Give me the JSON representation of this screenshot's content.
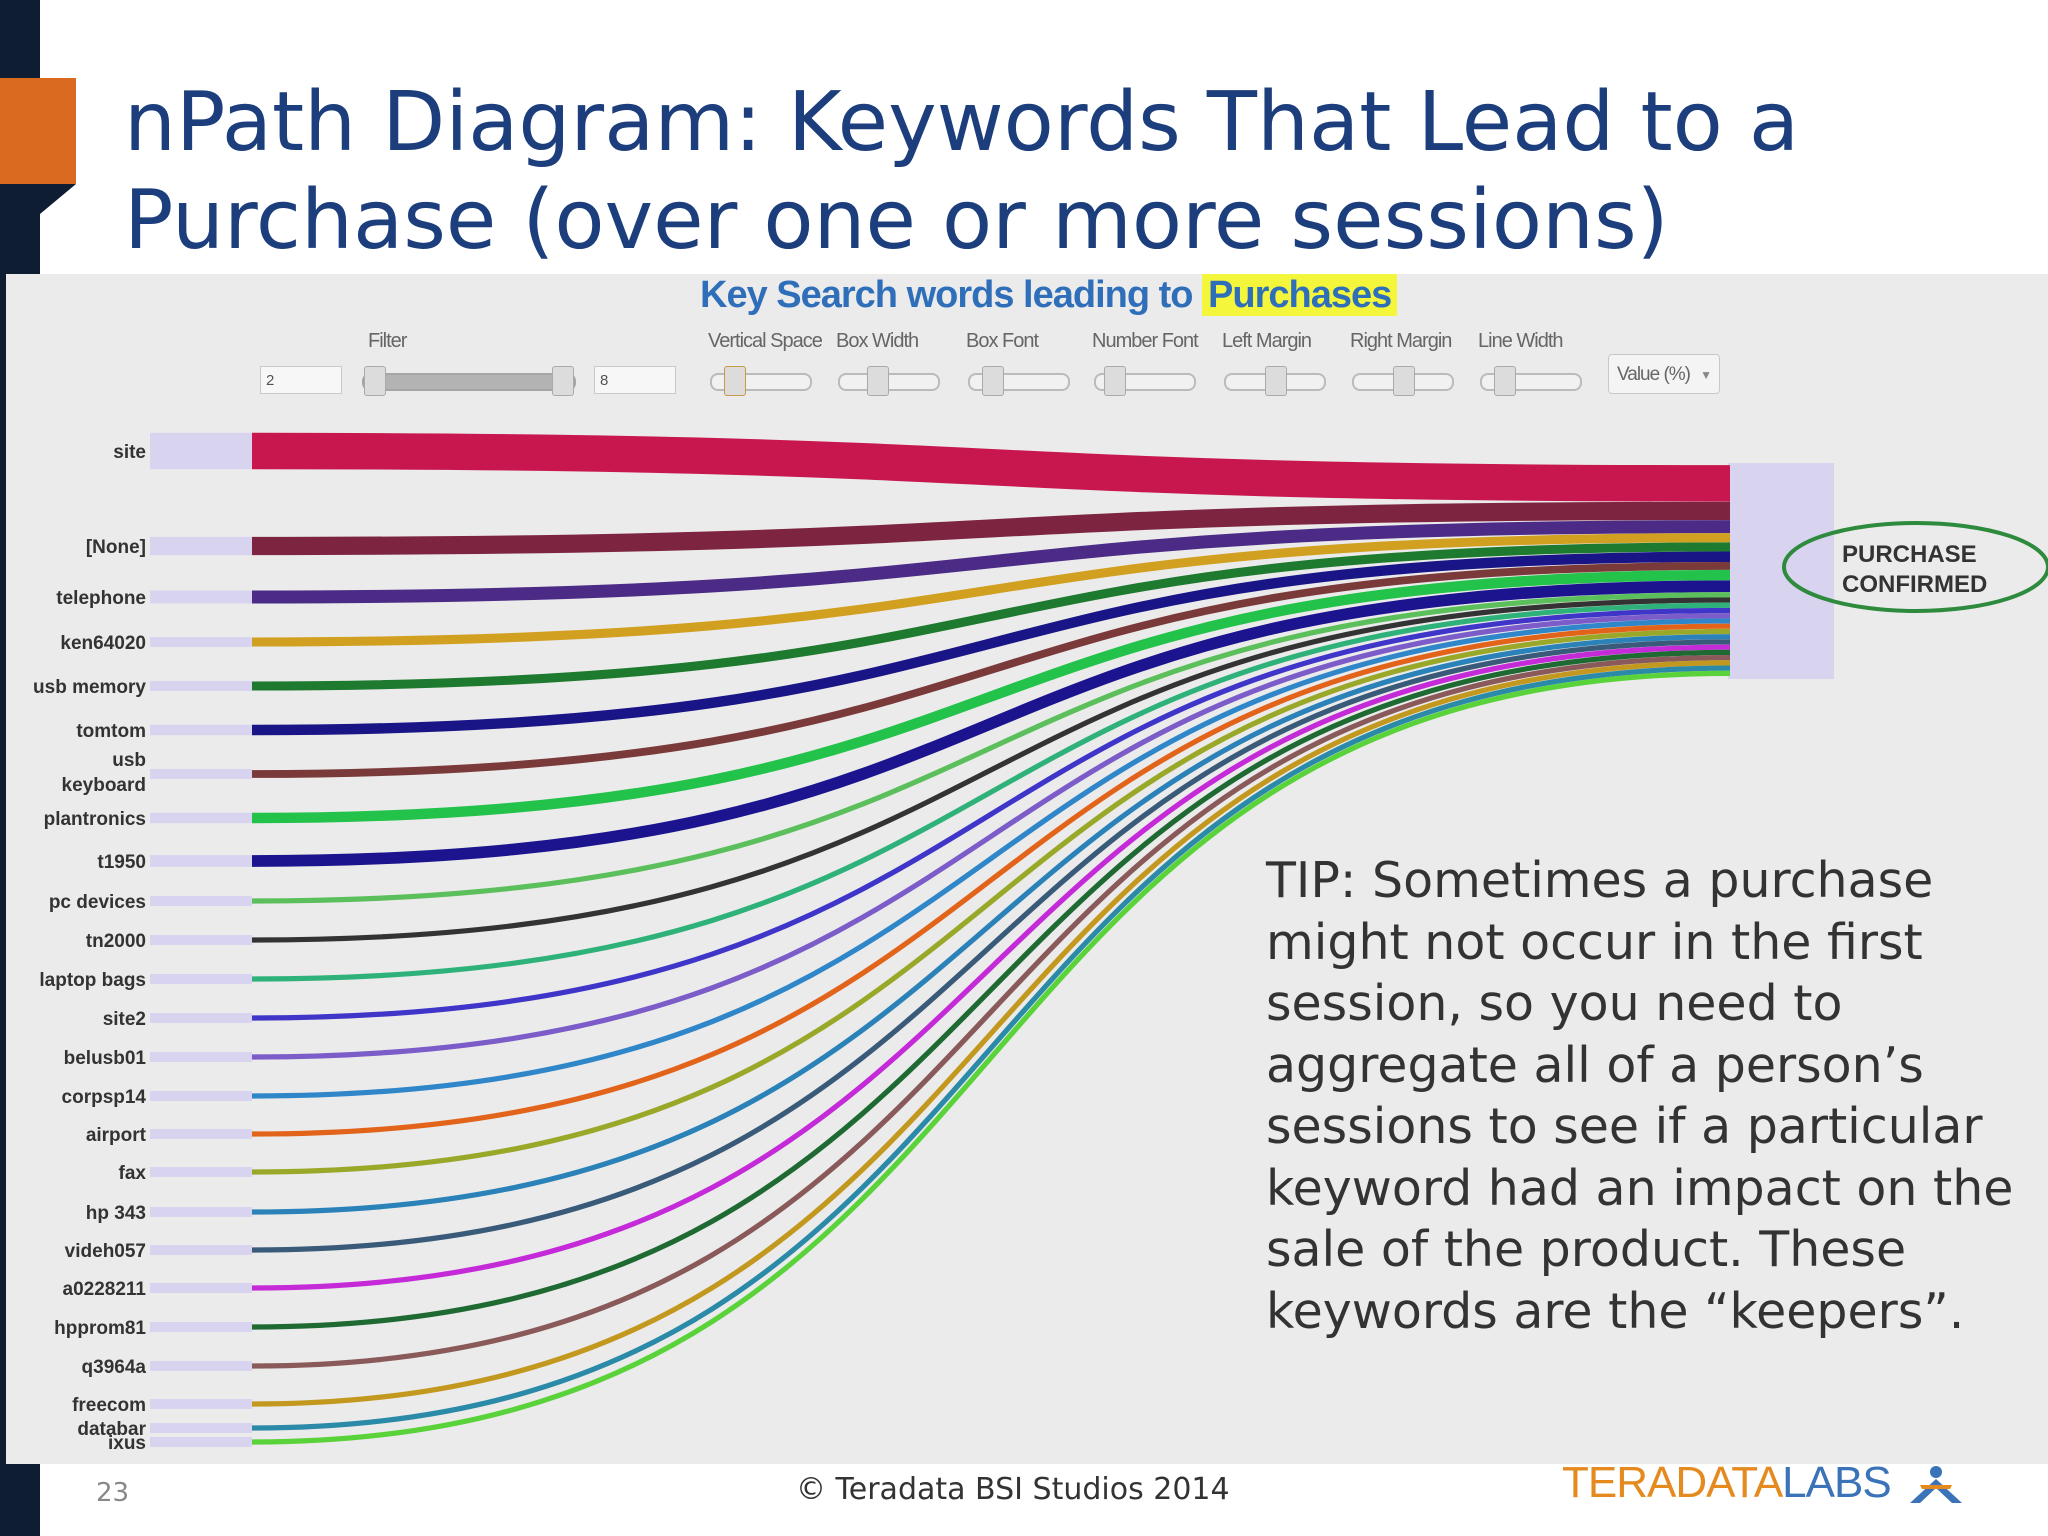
{
  "slide": {
    "title": "nPath Diagram: Keywords That Lead to a Purchase (over one or more sessions)",
    "number": "23",
    "footer": "© Teradata BSI Studios 2014",
    "logo": {
      "brand": "TERADATA",
      "suffix": "LABS",
      "brand_color": "#e48a1e",
      "suffix_color": "#3b73b9"
    },
    "accent_color": "#d96a1f",
    "title_color": "#1c3e7c"
  },
  "chart": {
    "title_prefix": "Key Search words leading to",
    "title_highlight": "Purchases",
    "controls": {
      "filter": {
        "label": "Filter",
        "min": "2",
        "max": "8",
        "position": 1.0
      },
      "sliders": [
        {
          "label": "Vertical Space",
          "position": 0.15
        },
        {
          "label": "Box Width",
          "position": 0.35
        },
        {
          "label": "Box Font",
          "position": 0.15
        },
        {
          "label": "Number Font",
          "position": 0.1
        },
        {
          "label": "Left Margin",
          "position": 0.5
        },
        {
          "label": "Right Margin",
          "position": 0.5
        },
        {
          "label": "Line Width",
          "position": 0.15
        }
      ],
      "value_select": "Value (%)"
    },
    "target": "PURCHASE CONFIRMED",
    "target_outline_color": "#2e8b3d",
    "nodes": [
      {
        "label": "site",
        "color": "#c8174f",
        "weight": 28
      },
      {
        "label": "[None]",
        "color": "#7d2540",
        "weight": 14
      },
      {
        "label": "telephone",
        "color": "#4b2b86",
        "weight": 10
      },
      {
        "label": "ken64020",
        "color": "#d2a020",
        "weight": 7
      },
      {
        "label": "usb memory",
        "color": "#1e7a2e",
        "weight": 7
      },
      {
        "label": "tomtom",
        "color": "#1a1586",
        "weight": 8
      },
      {
        "label": "usb keyboard",
        "color": "#7a3a3a",
        "weight": 6
      },
      {
        "label": "plantronics",
        "color": "#23c24a",
        "weight": 8
      },
      {
        "label": "t1950",
        "color": "#1b148e",
        "weight": 9
      },
      {
        "label": "pc devices",
        "color": "#5bc05b",
        "weight": 4
      },
      {
        "label": "tn2000",
        "color": "#333333",
        "weight": 4
      },
      {
        "label": "laptop bags",
        "color": "#2fb27a",
        "weight": 4
      },
      {
        "label": "site2",
        "color": "#3f35c8",
        "weight": 4
      },
      {
        "label": "belusb01",
        "color": "#7b5cc8",
        "weight": 4
      },
      {
        "label": "corpsp14",
        "color": "#2f86c8",
        "weight": 4
      },
      {
        "label": "airport",
        "color": "#e2641a",
        "weight": 4
      },
      {
        "label": "fax",
        "color": "#9aa82a",
        "weight": 4
      },
      {
        "label": "hp 343",
        "color": "#2a82b8",
        "weight": 4
      },
      {
        "label": "videh057",
        "color": "#3a5a7a",
        "weight": 4
      },
      {
        "label": "a0228211",
        "color": "#c42ad8",
        "weight": 4
      },
      {
        "label": "hpprom81",
        "color": "#1e6a32",
        "weight": 4
      },
      {
        "label": "q3964a",
        "color": "#8a5a5a",
        "weight": 4
      },
      {
        "label": "freecom",
        "color": "#c2981e",
        "weight": 4
      },
      {
        "label": "databar",
        "color": "#2a8aa8",
        "weight": 4
      },
      {
        "label": "ixus",
        "color": "#5ad23a",
        "weight": 4
      }
    ]
  },
  "tip": "TIP: Sometimes a purchase might not occur in the first session, so you need to aggregate all of a person’s sessions to see if a particular keyword had an impact on the sale of the product. These keywords are the “keepers”."
}
